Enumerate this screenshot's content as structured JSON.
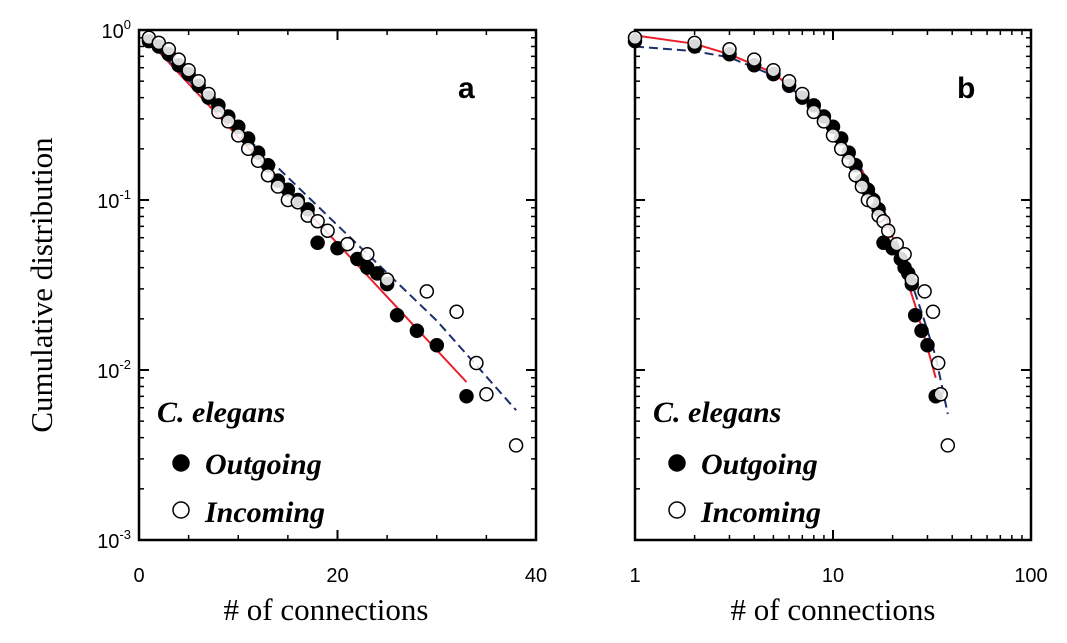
{
  "chart_data": [
    {
      "type": "scatter",
      "panel": "a",
      "xlabel": "# of connections",
      "ylabel": "Cumulative distribution",
      "xscale": "linear",
      "yscale": "log",
      "xlim": [
        0,
        40
      ],
      "ylim": [
        0.001,
        1
      ],
      "xticks": [
        "0",
        "20",
        "40"
      ],
      "yticks": [
        {
          "base": "10",
          "exp": "0"
        },
        {
          "base": "10",
          "exp": "-1"
        },
        {
          "base": "10",
          "exp": "-2"
        },
        {
          "base": "10",
          "exp": "-3"
        }
      ],
      "legend": {
        "title": "C. elegans",
        "entries": [
          "Outgoing",
          "Incoming"
        ],
        "position": "bottom-left"
      },
      "series": [
        {
          "name": "Outgoing",
          "marker": "filled-circle",
          "points": [
            [
              1,
              0.86
            ],
            [
              2,
              0.8
            ],
            [
              3,
              0.72
            ],
            [
              4,
              0.62
            ],
            [
              5,
              0.55
            ],
            [
              6,
              0.47
            ],
            [
              7,
              0.4
            ],
            [
              8,
              0.36
            ],
            [
              9,
              0.31
            ],
            [
              10,
              0.27
            ],
            [
              11,
              0.23
            ],
            [
              12,
              0.19
            ],
            [
              13,
              0.16
            ],
            [
              14,
              0.13
            ],
            [
              15,
              0.115
            ],
            [
              16,
              0.1
            ],
            [
              17,
              0.088
            ],
            [
              18,
              0.056
            ],
            [
              20,
              0.052
            ],
            [
              22,
              0.045
            ],
            [
              23,
              0.04
            ],
            [
              24,
              0.037
            ],
            [
              25,
              0.032
            ],
            [
              26,
              0.021
            ],
            [
              28,
              0.017
            ],
            [
              30,
              0.014
            ],
            [
              33,
              0.007
            ]
          ]
        },
        {
          "name": "Incoming",
          "marker": "open-circle",
          "points": [
            [
              1,
              0.9
            ],
            [
              2,
              0.84
            ],
            [
              3,
              0.77
            ],
            [
              4,
              0.67
            ],
            [
              5,
              0.58
            ],
            [
              6,
              0.5
            ],
            [
              7,
              0.42
            ],
            [
              8,
              0.33
            ],
            [
              9,
              0.29
            ],
            [
              10,
              0.24
            ],
            [
              11,
              0.2
            ],
            [
              12,
              0.17
            ],
            [
              13,
              0.14
            ],
            [
              14,
              0.12
            ],
            [
              15,
              0.1
            ],
            [
              16,
              0.097
            ],
            [
              17,
              0.081
            ],
            [
              18,
              0.075
            ],
            [
              19,
              0.066
            ],
            [
              21,
              0.055
            ],
            [
              23,
              0.048
            ],
            [
              25,
              0.034
            ],
            [
              29,
              0.029
            ],
            [
              32,
              0.022
            ],
            [
              34,
              0.011
            ],
            [
              35,
              0.0072
            ],
            [
              38,
              0.0036
            ]
          ]
        },
        {
          "name": "",
          "type": "line",
          "style": "solid",
          "color": "#e8202a",
          "points": [
            [
              1,
              0.86
            ],
            [
              33,
              0.0085
            ]
          ]
        },
        {
          "name": "",
          "type": "line",
          "style": "dashed",
          "color": "#1c2f6e",
          "points": [
            [
              1,
              0.86
            ],
            [
              10,
              0.26
            ],
            [
              20,
              0.071
            ],
            [
              30,
              0.0195
            ],
            [
              38,
              0.0058
            ]
          ]
        }
      ]
    },
    {
      "type": "scatter",
      "panel": "b",
      "xlabel": "# of connections",
      "ylabel": "",
      "xscale": "log",
      "yscale": "log",
      "xlim": [
        1,
        100
      ],
      "ylim": [
        0.001,
        1
      ],
      "xticks": [
        "1",
        "10",
        "100"
      ],
      "legend": {
        "title": "C. elegans",
        "entries": [
          "Outgoing",
          "Incoming"
        ],
        "position": "bottom-left"
      },
      "series": [
        {
          "name": "Outgoing",
          "marker": "filled-circle",
          "points": [
            [
              1,
              0.86
            ],
            [
              2,
              0.8
            ],
            [
              3,
              0.72
            ],
            [
              4,
              0.62
            ],
            [
              5,
              0.55
            ],
            [
              6,
              0.47
            ],
            [
              7,
              0.4
            ],
            [
              8,
              0.36
            ],
            [
              9,
              0.31
            ],
            [
              10,
              0.27
            ],
            [
              11,
              0.23
            ],
            [
              12,
              0.19
            ],
            [
              13,
              0.16
            ],
            [
              14,
              0.13
            ],
            [
              15,
              0.115
            ],
            [
              16,
              0.1
            ],
            [
              17,
              0.088
            ],
            [
              18,
              0.056
            ],
            [
              20,
              0.052
            ],
            [
              22,
              0.045
            ],
            [
              23,
              0.04
            ],
            [
              24,
              0.037
            ],
            [
              25,
              0.032
            ],
            [
              26,
              0.021
            ],
            [
              28,
              0.017
            ],
            [
              30,
              0.014
            ],
            [
              33,
              0.007
            ]
          ]
        },
        {
          "name": "Incoming",
          "marker": "open-circle",
          "points": [
            [
              1,
              0.9
            ],
            [
              2,
              0.84
            ],
            [
              3,
              0.77
            ],
            [
              4,
              0.67
            ],
            [
              5,
              0.58
            ],
            [
              6,
              0.5
            ],
            [
              7,
              0.42
            ],
            [
              8,
              0.33
            ],
            [
              9,
              0.29
            ],
            [
              10,
              0.24
            ],
            [
              11,
              0.2
            ],
            [
              12,
              0.17
            ],
            [
              13,
              0.14
            ],
            [
              14,
              0.12
            ],
            [
              15,
              0.1
            ],
            [
              16,
              0.097
            ],
            [
              17,
              0.081
            ],
            [
              18,
              0.075
            ],
            [
              19,
              0.066
            ],
            [
              21,
              0.055
            ],
            [
              23,
              0.048
            ],
            [
              25,
              0.034
            ],
            [
              29,
              0.029
            ],
            [
              32,
              0.022
            ],
            [
              34,
              0.011
            ],
            [
              35,
              0.0072
            ],
            [
              38,
              0.0036
            ]
          ]
        },
        {
          "name": "",
          "type": "line",
          "style": "solid",
          "color": "#e8202a",
          "points": [
            [
              1,
              0.93
            ],
            [
              2,
              0.83
            ],
            [
              3,
              0.72
            ],
            [
              5,
              0.56
            ],
            [
              8,
              0.35
            ],
            [
              10,
              0.27
            ],
            [
              14,
              0.15
            ],
            [
              18,
              0.086
            ],
            [
              22,
              0.044
            ],
            [
              26,
              0.024
            ],
            [
              30,
              0.0135
            ],
            [
              33,
              0.009
            ]
          ]
        },
        {
          "name": "",
          "type": "line",
          "style": "dashed",
          "color": "#1c2f6e",
          "points": [
            [
              1,
              0.8
            ],
            [
              2,
              0.75
            ],
            [
              3,
              0.69
            ],
            [
              5,
              0.54
            ],
            [
              8,
              0.36
            ],
            [
              10,
              0.27
            ],
            [
              14,
              0.15
            ],
            [
              18,
              0.088
            ],
            [
              22,
              0.05
            ],
            [
              28,
              0.022
            ],
            [
              33,
              0.012
            ],
            [
              38,
              0.0055
            ]
          ]
        }
      ]
    }
  ]
}
